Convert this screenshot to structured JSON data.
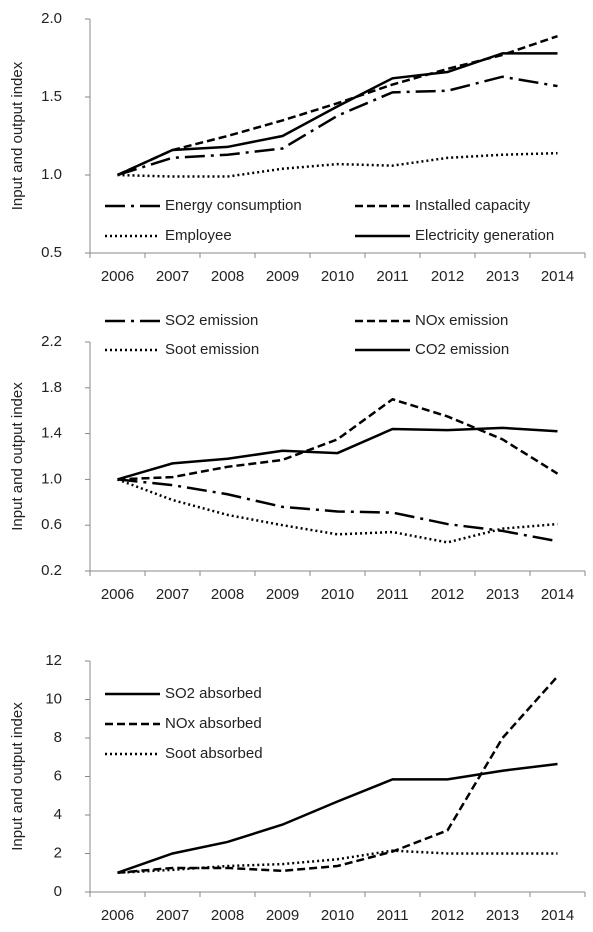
{
  "chart_data": [
    {
      "type": "line",
      "ylabel": "Input and output index",
      "categories": [
        "2006",
        "2007",
        "2008",
        "2009",
        "2010",
        "2011",
        "2012",
        "2013",
        "2014"
      ],
      "ylim": [
        0.5,
        2.0
      ],
      "yticks": [
        0.5,
        {
          "value": 1,
          "label": "1.0"
        },
        1.5,
        {
          "value": 2,
          "label": "2.0"
        }
      ],
      "series": [
        {
          "name": "Energy consumption",
          "color": "#000000",
          "dash": "dashdot",
          "values": [
            1.0,
            1.11,
            1.13,
            1.17,
            1.38,
            1.53,
            1.54,
            1.63,
            1.57
          ]
        },
        {
          "name": "Installed capacity",
          "color": "#000000",
          "dash": "dash",
          "values": [
            1.0,
            1.16,
            1.25,
            1.35,
            1.46,
            1.58,
            1.68,
            1.77,
            1.89
          ]
        },
        {
          "name": "Employee",
          "color": "#000000",
          "dash": "dot",
          "values": [
            1.0,
            0.99,
            0.99,
            1.04,
            1.07,
            1.06,
            1.11,
            1.13,
            1.14
          ]
        },
        {
          "name": "Electricity generation",
          "color": "#000000",
          "dash": "solid",
          "values": [
            1.0,
            1.16,
            1.18,
            1.25,
            1.44,
            1.62,
            1.66,
            1.78,
            1.78
          ]
        }
      ]
    },
    {
      "type": "line",
      "ylabel": "Input and output index",
      "categories": [
        "2006",
        "2007",
        "2008",
        "2009",
        "2010",
        "2011",
        "2012",
        "2013",
        "2014"
      ],
      "ylim": [
        0.2,
        2.2
      ],
      "yticks": [
        0.2,
        0.6,
        {
          "value": 1,
          "label": "1.0"
        },
        1.4,
        1.8,
        2.2
      ],
      "series": [
        {
          "name": "SO2 emission",
          "color": "#000000",
          "dash": "dashdot",
          "values": [
            1.0,
            0.95,
            0.87,
            0.76,
            0.72,
            0.71,
            0.61,
            0.55,
            0.46
          ]
        },
        {
          "name": "NOx emission",
          "color": "#000000",
          "dash": "dash",
          "values": [
            1.0,
            1.02,
            1.11,
            1.17,
            1.35,
            1.7,
            1.55,
            1.35,
            1.05
          ]
        },
        {
          "name": "Soot emission",
          "color": "#000000",
          "dash": "dot",
          "values": [
            1.0,
            0.82,
            0.69,
            0.6,
            0.52,
            0.54,
            0.45,
            0.57,
            0.61
          ]
        },
        {
          "name": "CO2 emission",
          "color": "#000000",
          "dash": "solid",
          "values": [
            1.0,
            1.14,
            1.18,
            1.25,
            1.23,
            1.44,
            1.43,
            1.45,
            1.42
          ]
        }
      ]
    },
    {
      "type": "line",
      "ylabel": "Input and output index",
      "categories": [
        "2006",
        "2007",
        "2008",
        "2009",
        "2010",
        "2011",
        "2012",
        "2013",
        "2014"
      ],
      "ylim": [
        0,
        12
      ],
      "yticks": [
        0,
        2,
        4,
        6,
        8,
        10,
        12
      ],
      "series": [
        {
          "name": "SO2 absorbed",
          "color": "#000000",
          "dash": "solid",
          "values": [
            1,
            2.0,
            2.6,
            3.5,
            4.7,
            5.85,
            5.85,
            6.3,
            6.65
          ]
        },
        {
          "name": "NOx absorbed",
          "color": "#000000",
          "dash": "dash",
          "values": [
            1,
            1.25,
            1.25,
            1.1,
            1.35,
            2.1,
            3.2,
            8.0,
            11.2
          ]
        },
        {
          "name": "Soot absorbed",
          "color": "#000000",
          "dash": "dot",
          "values": [
            1,
            1.15,
            1.35,
            1.45,
            1.7,
            2.15,
            2.0,
            2.0,
            2.0
          ]
        }
      ]
    }
  ]
}
